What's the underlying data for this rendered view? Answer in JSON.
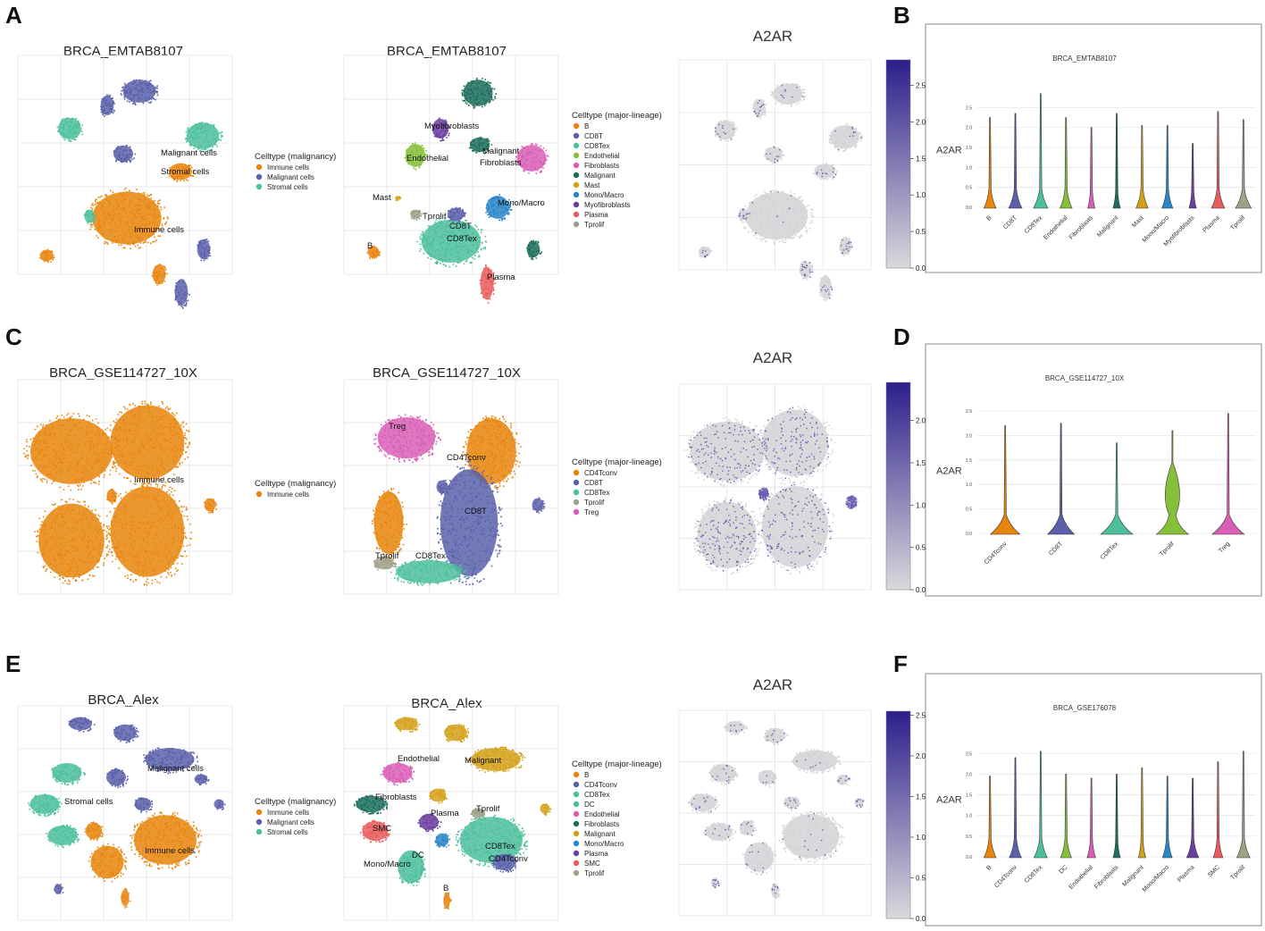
{
  "colors": {
    "Immune cells": "#e8850c",
    "Malignant cells": "#5a60aa",
    "Stromal cells": "#4cbf9c",
    "B": "#e8850c",
    "CD8T": "#5a60aa",
    "CD8Tex": "#4cbf9c",
    "Endothelial": "#86c03a",
    "Fibroblasts": "#d95fb6",
    "Malignant": "#1c6e5c",
    "Mast": "#d4a017",
    "Mono/Macro": "#2b86c8",
    "Myofibroblasts": "#6b3fa0",
    "Plasma": "#e85c5c",
    "Tprolif": "#a0a088",
    "CD4Tconv": "#e8850c",
    "Treg": "#d95fb6",
    "DC": "#4cbf9c",
    "SMC": "#e85c5c",
    "Malignant_alex": "#d4a017",
    "Fibroblasts_alex": "#1c6e5c",
    "Endothelial_alex": "#d95fb6",
    "Mono/Macro_alex": "#2b86c8",
    "Plasma_alex": "#6b3fa0",
    "CD8Tex_alex": "#4cbf9c",
    "CD4Tconv_alex": "#5a60aa",
    "B_alex": "#e8850c"
  },
  "rows": [
    {
      "umap_left": {
        "letter": "A",
        "title": "BRCA_EMTAB8107",
        "legend_title": "Celltype (malignancy)",
        "legend": [
          "Immune cells",
          "Malignant cells",
          "Stromal cells"
        ],
        "labels": [
          "Malignant cells",
          "Stromal cells",
          "Immune cells"
        ]
      },
      "umap_mid": {
        "title": "BRCA_EMTAB8107",
        "legend_title": "Celltype (major-lineage)",
        "legend": [
          "B",
          "CD8T",
          "CD8Tex",
          "Endothelial",
          "Fibroblasts",
          "Malignant",
          "Mast",
          "Mono/Macro",
          "Myofibroblasts",
          "Plasma",
          "Tprolif"
        ],
        "labels": [
          "Myofibroblasts",
          "Malignant",
          "Fibroblasts",
          "Endothelial",
          "Mono/Macro",
          "Mast",
          "Tprolif",
          "CD8T",
          "CD8Tex",
          "B",
          "Plasma"
        ]
      },
      "feature": {
        "title": "A2AR",
        "ticks": [
          "2.5",
          "2.0",
          "1.5",
          "1.0",
          "0.5",
          "0.0"
        ]
      },
      "violin": {
        "letter": "B",
        "title": "BRCA_EMTAB8107",
        "ylabel": "A2AR",
        "yticks": [
          "0.0",
          "0.5",
          "1.0",
          "1.5",
          "2.0",
          "2.5"
        ],
        "ylim": [
          0,
          2.8
        ]
      }
    },
    {
      "umap_left": {
        "letter": "C",
        "title": "BRCA_GSE114727_10X",
        "legend_title": "Celltype (malignancy)",
        "legend": [
          "Immune cells"
        ],
        "labels": [
          "Immune cells"
        ]
      },
      "umap_mid": {
        "title": "BRCA_GSE114727_10X",
        "legend_title": "Celltype (major-lineage)",
        "legend": [
          "CD4Tconv",
          "CD8T",
          "CD8Tex",
          "Tprolif",
          "Treg"
        ],
        "labels": [
          "Treg",
          "CD4Tconv",
          "CD8T",
          "Tprolif",
          "CD8Tex"
        ]
      },
      "feature": {
        "title": "A2AR",
        "ticks": [
          "2.0",
          "1.5",
          "1.0",
          "0.5",
          "0.0"
        ]
      },
      "violin": {
        "letter": "D",
        "title": "BRCA_GSE114727_10X",
        "ylabel": "A2AR",
        "yticks": [
          "0.0",
          "0.5",
          "1.0",
          "1.5",
          "2.0",
          "2.5"
        ],
        "ylim": [
          0,
          2.5
        ]
      }
    },
    {
      "umap_left": {
        "letter": "E",
        "title": "BRCA_Alex",
        "legend_title": "Celltype (malignancy)",
        "legend": [
          "Immune cells",
          "Malignant cells",
          "Stromal cells"
        ],
        "labels": [
          "Malignant cells",
          "Stromal cells",
          "Immune cells"
        ]
      },
      "umap_mid": {
        "title": "BRCA_Alex",
        "legend_title": "Celltype (major-lineage)",
        "legend": [
          "B",
          "CD4Tconv",
          "CD8Tex",
          "DC",
          "Endothelial",
          "Fibroblasts",
          "Malignant",
          "Mono/Macro",
          "Plasma",
          "SMC",
          "Tprolif"
        ],
        "labels": [
          "Endothelial",
          "Malignant",
          "Fibroblasts",
          "Plasma",
          "Tprolif",
          "SMC",
          "CD8Tex",
          "CD4Tconv",
          "DC",
          "Mono/Macro",
          "B"
        ]
      },
      "feature": {
        "title": "A2AR",
        "ticks": [
          "2.5",
          "2.0",
          "1.5",
          "1.0",
          "0.5",
          "0.0"
        ]
      },
      "violin": {
        "letter": "F",
        "title": "BRCA_GSE176078",
        "ylabel": "A2AR",
        "yticks": [
          "0.0",
          "0.5",
          "1.0",
          "1.5",
          "2.0",
          "2.5"
        ],
        "ylim": [
          0,
          2.7
        ]
      }
    }
  ],
  "chart_data": [
    {
      "type": "violin",
      "title": "BRCA_EMTAB8107",
      "ylabel": "A2AR",
      "ylim": [
        0,
        2.8
      ],
      "categories": [
        "B",
        "CD8T",
        "CD8Tex",
        "Endothelial",
        "Fibroblasts",
        "Malignant",
        "Mast",
        "Mono/Macro",
        "Myofibroblasts",
        "Plasma",
        "Tprolif"
      ],
      "max_values": [
        2.25,
        2.35,
        2.85,
        2.25,
        2.0,
        2.35,
        2.05,
        2.05,
        1.6,
        2.4,
        2.2
      ],
      "base_width": [
        0.5,
        0.55,
        0.6,
        0.5,
        0.3,
        0.3,
        0.5,
        0.45,
        0.3,
        0.55,
        0.65
      ],
      "colors": [
        "#e8850c",
        "#5a60aa",
        "#4cbf9c",
        "#86c03a",
        "#d95fb6",
        "#1c6e5c",
        "#d4a017",
        "#2b86c8",
        "#6b3fa0",
        "#e85c5c",
        "#a0a088"
      ]
    },
    {
      "type": "violin",
      "title": "BRCA_GSE114727_10X",
      "ylabel": "A2AR",
      "ylim": [
        0,
        2.5
      ],
      "categories": [
        "CD4Tconv",
        "CD8T",
        "CD8Tex",
        "Tprolif",
        "Treg"
      ],
      "max_values": [
        2.2,
        2.25,
        1.85,
        2.1,
        2.45
      ],
      "base_width": [
        0.55,
        0.5,
        0.6,
        0.6,
        0.6
      ],
      "colors": [
        "#e8850c",
        "#5a60aa",
        "#4cbf9c",
        "#86c03a",
        "#d95fb6"
      ]
    },
    {
      "type": "violin",
      "title": "BRCA_GSE176078",
      "ylabel": "A2AR",
      "ylim": [
        0,
        2.7
      ],
      "categories": [
        "B",
        "CD4Tconv",
        "CD8Tex",
        "DC",
        "Endothelial",
        "Fibroblasts",
        "Malignant",
        "Mono/Macro",
        "Plasma",
        "SMC",
        "Tprolif"
      ],
      "max_values": [
        1.95,
        2.4,
        2.55,
        2.0,
        1.9,
        2.0,
        2.15,
        1.95,
        1.9,
        2.3,
        2.55
      ],
      "base_width": [
        0.5,
        0.5,
        0.55,
        0.45,
        0.35,
        0.3,
        0.3,
        0.4,
        0.5,
        0.4,
        0.55
      ],
      "colors": [
        "#e8850c",
        "#5a60aa",
        "#4cbf9c",
        "#86c03a",
        "#d95fb6",
        "#1c6e5c",
        "#d4a017",
        "#2b86c8",
        "#6b3fa0",
        "#e85c5c",
        "#a0a088"
      ]
    }
  ]
}
